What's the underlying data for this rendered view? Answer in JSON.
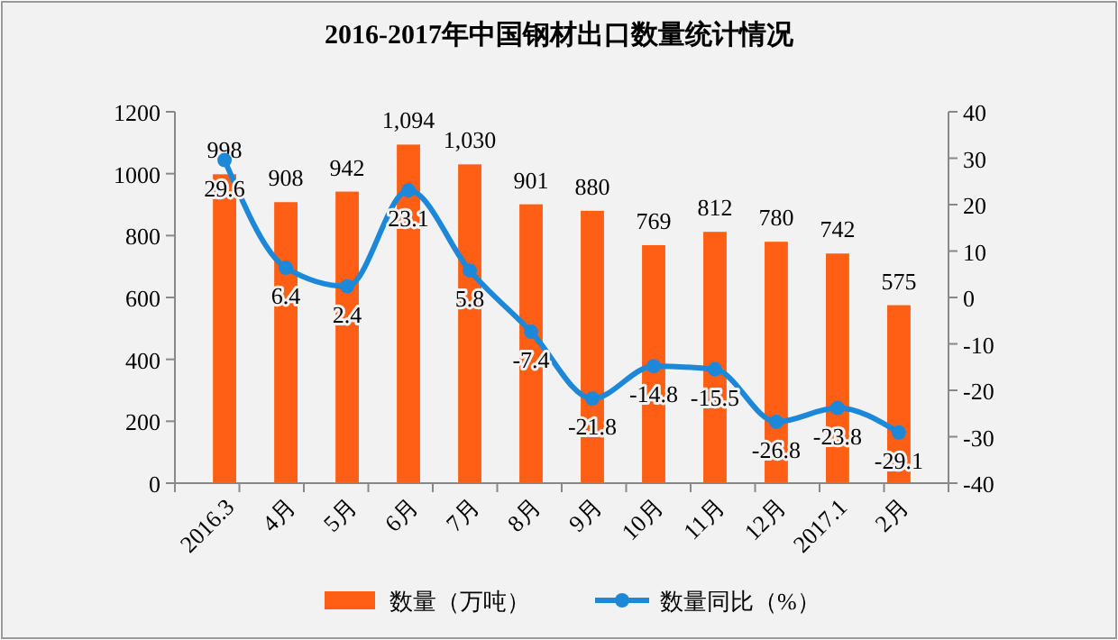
{
  "chart_data": {
    "type": "bar",
    "title": "2016-2017年中国钢材出口数量统计情况",
    "categories": [
      "2016.3",
      "4月",
      "5月",
      "6月",
      "7月",
      "8月",
      "9月",
      "10月",
      "11月",
      "12月",
      "2017.1",
      "2月"
    ],
    "series": [
      {
        "name": "数量（万吨）",
        "color": "#ff5f14",
        "values": [
          998,
          908,
          942,
          1094,
          1030,
          901,
          880,
          769,
          812,
          780,
          742,
          575
        ],
        "value_labels": [
          "998",
          "908",
          "942",
          "1,094",
          "1,030",
          "901",
          "880",
          "769",
          "812",
          "780",
          "742",
          "575"
        ]
      },
      {
        "name": "数量同比（%）",
        "type": "line",
        "axis": "y2",
        "color": "#1e88d8",
        "values": [
          29.6,
          6.4,
          2.4,
          23.1,
          5.8,
          -7.4,
          -21.8,
          -14.8,
          -15.5,
          -26.8,
          -23.8,
          -29.1
        ],
        "value_labels": [
          "29.6",
          "6.4",
          "2.4",
          "23.1",
          "5.8",
          "-7.4",
          "-21.8",
          "-14.8",
          "-15.5",
          "-26.8",
          "-23.8",
          "-29.1"
        ],
        "marker": "circle"
      }
    ],
    "ylim": [
      0,
      1200
    ],
    "yticks": [
      0,
      200,
      400,
      600,
      800,
      1000,
      1200
    ],
    "y2lim": [
      -40,
      40
    ],
    "y2ticks": [
      -40,
      -30,
      -20,
      -10,
      0,
      10,
      20,
      30,
      40
    ],
    "legend": "bottom",
    "grid": false
  }
}
